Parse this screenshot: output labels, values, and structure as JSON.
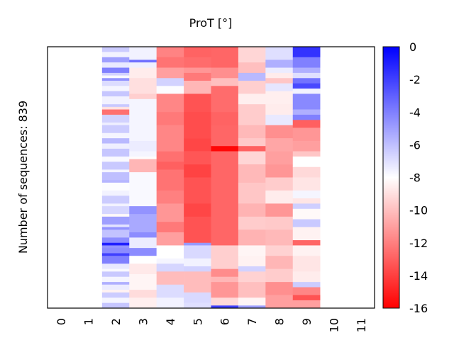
{
  "chart_data": {
    "type": "heatmap",
    "title": "ProT [°]",
    "xlabel": "",
    "ylabel": "Number of sequences: 839",
    "x_categories": [
      "0",
      "1",
      "2",
      "3",
      "4",
      "5",
      "6",
      "7",
      "8",
      "9",
      "10",
      "11"
    ],
    "n_rows": 839,
    "colorbar": {
      "range": [
        -16,
        0
      ],
      "ticks": [
        "0",
        "-2",
        "-4",
        "-6",
        "-8",
        "-10",
        "-12",
        "-14",
        "-16"
      ],
      "tick_values": [
        0,
        -2,
        -4,
        -6,
        -8,
        -10,
        -12,
        -14,
        -16
      ],
      "colormap": [
        {
          "value": -16,
          "color": "#ff0000"
        },
        {
          "value": -8,
          "color": "#ffffff"
        },
        {
          "value": 0,
          "color": "#0000ff"
        }
      ],
      "placement": "right"
    },
    "columns": [
      {
        "index": 0,
        "segments": []
      },
      {
        "index": 1,
        "segments": []
      },
      {
        "index": 2,
        "segments": [
          [
            0.0,
            -6.4
          ],
          [
            0.02,
            -7.6
          ],
          [
            0.04,
            -5.0
          ],
          [
            0.06,
            -7.3
          ],
          [
            0.08,
            -4.0
          ],
          [
            0.1,
            -6.6
          ],
          [
            0.11,
            -7.8
          ],
          [
            0.12,
            -4.6
          ],
          [
            0.13,
            -6.9
          ],
          [
            0.15,
            -7.7
          ],
          [
            0.17,
            -6.2
          ],
          [
            0.19,
            -7.6
          ],
          [
            0.22,
            -6.3
          ],
          [
            0.23,
            -8.9
          ],
          [
            0.24,
            -12.5
          ],
          [
            0.26,
            -6.6
          ],
          [
            0.29,
            -7.5
          ],
          [
            0.3,
            -6.4
          ],
          [
            0.33,
            -7.7
          ],
          [
            0.35,
            -5.8
          ],
          [
            0.37,
            -7.5
          ],
          [
            0.39,
            -6.2
          ],
          [
            0.42,
            -7.8
          ],
          [
            0.44,
            -6.3
          ],
          [
            0.47,
            -7.7
          ],
          [
            0.48,
            -6.0
          ],
          [
            0.51,
            -5.7
          ],
          [
            0.52,
            -7.9
          ],
          [
            0.55,
            -7.6
          ],
          [
            0.57,
            -6.4
          ],
          [
            0.6,
            -7.6
          ],
          [
            0.61,
            -6.7
          ],
          [
            0.64,
            -8.2
          ],
          [
            0.65,
            -5.0
          ],
          [
            0.68,
            -7.1
          ],
          [
            0.69,
            -4.6
          ],
          [
            0.7,
            -6.1
          ],
          [
            0.73,
            -4.4
          ],
          [
            0.75,
            -1.0
          ],
          [
            0.76,
            -4.6
          ],
          [
            0.77,
            -4.4
          ],
          [
            0.79,
            -2.0
          ],
          [
            0.8,
            -4.0
          ],
          [
            0.83,
            -7.3
          ],
          [
            0.85,
            -7.8
          ],
          [
            0.86,
            -6.3
          ],
          [
            0.88,
            -7.7
          ],
          [
            0.9,
            -5.5
          ],
          [
            0.91,
            -7.4
          ],
          [
            0.93,
            -8.4
          ],
          [
            0.94,
            -6.4
          ],
          [
            0.96,
            -7.7
          ],
          [
            0.98,
            -6.2
          ],
          [
            1.0,
            null
          ]
        ]
      },
      {
        "index": 3,
        "segments": [
          [
            0.0,
            -7.6
          ],
          [
            0.05,
            -3.5
          ],
          [
            0.06,
            -7.5
          ],
          [
            0.08,
            -8.6
          ],
          [
            0.12,
            -9.0
          ],
          [
            0.18,
            -9.5
          ],
          [
            0.2,
            -7.7
          ],
          [
            0.36,
            -7.4
          ],
          [
            0.4,
            -7.7
          ],
          [
            0.42,
            -8.1
          ],
          [
            0.43,
            -10.3
          ],
          [
            0.48,
            -7.8
          ],
          [
            0.61,
            -4.6
          ],
          [
            0.64,
            -5.3
          ],
          [
            0.71,
            -4.4
          ],
          [
            0.73,
            -7.4
          ],
          [
            0.77,
            -4.4
          ],
          [
            0.8,
            -8.0
          ],
          [
            0.83,
            -8.7
          ],
          [
            0.87,
            -8.3
          ],
          [
            0.93,
            -9.1
          ],
          [
            0.96,
            -8.5
          ],
          [
            1.0,
            null
          ]
        ]
      },
      {
        "index": 4,
        "segments": [
          [
            0.0,
            -11.9
          ],
          [
            0.04,
            -12.4
          ],
          [
            0.08,
            -11.0
          ],
          [
            0.12,
            -6.6
          ],
          [
            0.15,
            -7.9
          ],
          [
            0.18,
            -11.8
          ],
          [
            0.25,
            -12.2
          ],
          [
            0.3,
            -11.8
          ],
          [
            0.4,
            -12.5
          ],
          [
            0.44,
            -13.0
          ],
          [
            0.47,
            -12.4
          ],
          [
            0.55,
            -12.0
          ],
          [
            0.6,
            -11.3
          ],
          [
            0.67,
            -12.2
          ],
          [
            0.71,
            -11.0
          ],
          [
            0.76,
            -8.0
          ],
          [
            0.81,
            -7.7
          ],
          [
            0.83,
            -6.7
          ],
          [
            0.86,
            -10.1
          ],
          [
            0.91,
            -6.9
          ],
          [
            0.96,
            -7.6
          ],
          [
            1.0,
            null
          ]
        ]
      },
      {
        "index": 5,
        "segments": [
          [
            0.0,
            -12.9
          ],
          [
            0.04,
            -12.6
          ],
          [
            0.08,
            -11.3
          ],
          [
            0.1,
            -12.2
          ],
          [
            0.13,
            -10.3
          ],
          [
            0.18,
            -13.4
          ],
          [
            0.25,
            -13.6
          ],
          [
            0.35,
            -13.8
          ],
          [
            0.4,
            -13.3
          ],
          [
            0.45,
            -13.9
          ],
          [
            0.5,
            -13.4
          ],
          [
            0.6,
            -13.8
          ],
          [
            0.65,
            -13.4
          ],
          [
            0.75,
            -4.8
          ],
          [
            0.76,
            -6.8
          ],
          [
            0.81,
            -7.6
          ],
          [
            0.84,
            -6.6
          ],
          [
            0.86,
            -10.1
          ],
          [
            0.94,
            -6.8
          ],
          [
            0.98,
            -7.0
          ],
          [
            1.0,
            null
          ]
        ]
      },
      {
        "index": 6,
        "segments": [
          [
            0.0,
            -12.8
          ],
          [
            0.08,
            -11.5
          ],
          [
            0.12,
            -10.0
          ],
          [
            0.15,
            -12.6
          ],
          [
            0.25,
            -12.9
          ],
          [
            0.3,
            -12.8
          ],
          [
            0.38,
            -15.8
          ],
          [
            0.4,
            -12.8
          ],
          [
            0.5,
            -12.8
          ],
          [
            0.65,
            -12.8
          ],
          [
            0.76,
            -9.5
          ],
          [
            0.85,
            -11.6
          ],
          [
            0.88,
            -10.3
          ],
          [
            0.9,
            -11.3
          ],
          [
            0.96,
            -9.2
          ],
          [
            0.99,
            -2.0
          ],
          [
            1.0,
            null
          ]
        ]
      },
      {
        "index": 7,
        "segments": [
          [
            0.0,
            -9.3
          ],
          [
            0.06,
            -10.0
          ],
          [
            0.1,
            -5.8
          ],
          [
            0.13,
            -9.5
          ],
          [
            0.18,
            -8.5
          ],
          [
            0.22,
            -9.6
          ],
          [
            0.3,
            -10.2
          ],
          [
            0.35,
            -9.7
          ],
          [
            0.38,
            -13.0
          ],
          [
            0.4,
            -9.3
          ],
          [
            0.45,
            -10.2
          ],
          [
            0.52,
            -9.8
          ],
          [
            0.6,
            -10.4
          ],
          [
            0.65,
            -9.6
          ],
          [
            0.7,
            -10.4
          ],
          [
            0.76,
            -8.3
          ],
          [
            0.8,
            -8.4
          ],
          [
            0.84,
            -6.6
          ],
          [
            0.86,
            -9.4
          ],
          [
            0.9,
            -10.0
          ],
          [
            0.96,
            -8.3
          ],
          [
            0.99,
            -5.0
          ],
          [
            1.0,
            null
          ]
        ]
      },
      {
        "index": 8,
        "segments": [
          [
            0.0,
            -7.0
          ],
          [
            0.05,
            -5.5
          ],
          [
            0.08,
            -7.4
          ],
          [
            0.1,
            -8.6
          ],
          [
            0.12,
            -9.8
          ],
          [
            0.14,
            -7.2
          ],
          [
            0.17,
            -8.5
          ],
          [
            0.22,
            -8.6
          ],
          [
            0.26,
            -7.3
          ],
          [
            0.3,
            -11.5
          ],
          [
            0.35,
            -10.8
          ],
          [
            0.4,
            -11.0
          ],
          [
            0.45,
            -11.3
          ],
          [
            0.5,
            -9.6
          ],
          [
            0.55,
            -8.6
          ],
          [
            0.6,
            -11.3
          ],
          [
            0.65,
            -9.7
          ],
          [
            0.7,
            -10.2
          ],
          [
            0.76,
            -9.4
          ],
          [
            0.8,
            -10.3
          ],
          [
            0.85,
            -9.6
          ],
          [
            0.9,
            -11.5
          ],
          [
            0.95,
            -11.0
          ],
          [
            1.0,
            null
          ]
        ]
      },
      {
        "index": 9,
        "segments": [
          [
            0.0,
            -1.6
          ],
          [
            0.04,
            -4.0
          ],
          [
            0.08,
            -5.5
          ],
          [
            0.1,
            -7.0
          ],
          [
            0.12,
            -3.6
          ],
          [
            0.14,
            -2.3
          ],
          [
            0.16,
            -7.6
          ],
          [
            0.18,
            -4.3
          ],
          [
            0.24,
            -5.5
          ],
          [
            0.26,
            -4.0
          ],
          [
            0.28,
            -13.0
          ],
          [
            0.31,
            -11.3
          ],
          [
            0.36,
            -11.0
          ],
          [
            0.4,
            -9.8
          ],
          [
            0.42,
            -8.0
          ],
          [
            0.46,
            -9.2
          ],
          [
            0.5,
            -8.8
          ],
          [
            0.55,
            -7.7
          ],
          [
            0.58,
            -8.8
          ],
          [
            0.6,
            -6.5
          ],
          [
            0.62,
            -8.2
          ],
          [
            0.66,
            -6.3
          ],
          [
            0.69,
            -8.4
          ],
          [
            0.74,
            -12.8
          ],
          [
            0.76,
            -8.4
          ],
          [
            0.8,
            -8.8
          ],
          [
            0.86,
            -8.6
          ],
          [
            0.9,
            -6.4
          ],
          [
            0.92,
            -11.8
          ],
          [
            0.95,
            -13.4
          ],
          [
            0.97,
            -11.0
          ],
          [
            1.0,
            null
          ]
        ]
      },
      {
        "index": 10,
        "segments": []
      },
      {
        "index": 11,
        "segments": []
      }
    ]
  }
}
